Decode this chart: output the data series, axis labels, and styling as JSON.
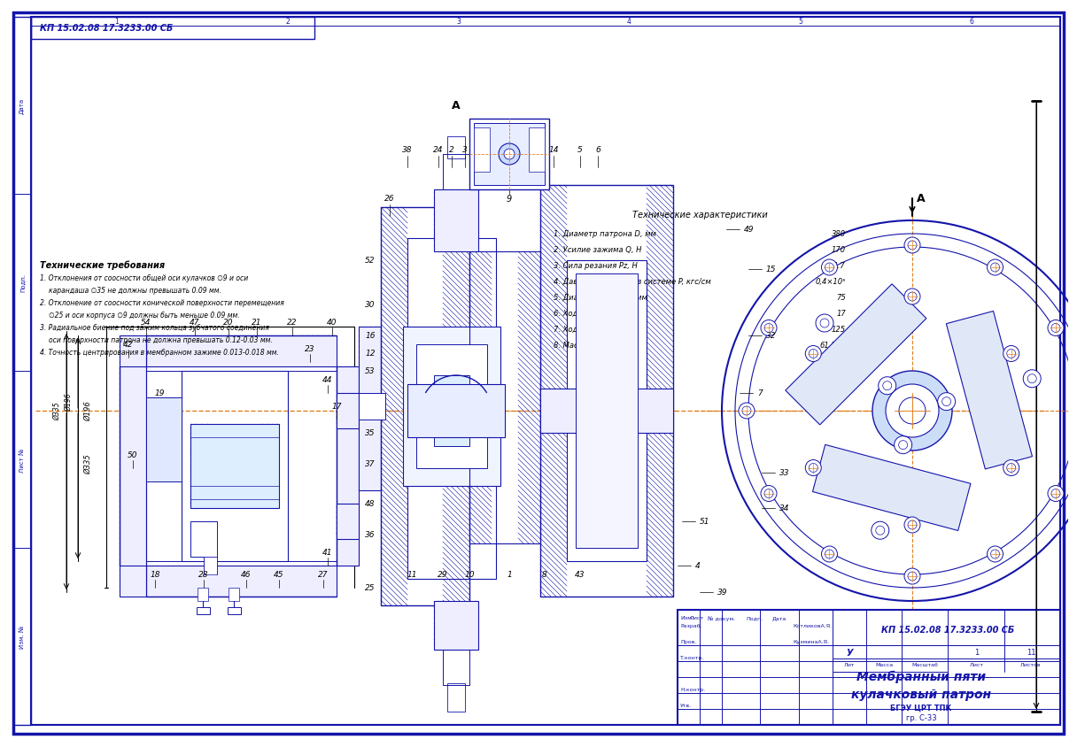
{
  "bg": "#FFFFFF",
  "blue": "#1414AA",
  "orange": "#E08020",
  "black": "#000000",
  "gray": "#888888",
  "title": "КП 15.02.08 17.3233.00 СБ",
  "name1": "Мембранный пяти",
  "name2": "кулачковый патрон",
  "institution": "БГЭУ ЦРТ ТПК",
  "sheet_ref": "гр. С-33",
  "tc_title": "Технические характеристики",
  "tc_items": [
    [
      "1. Диаметр патрона D, мм",
      "380"
    ],
    [
      "2. Усилие зажима Q, Н",
      "170"
    ],
    [
      "3. Сила резания Pz, Н",
      "44.7"
    ],
    [
      "4. Давление воздуха в системе P, кгс/см",
      "0,4×10⁵"
    ],
    [
      "5. Диаметр штока d, мм",
      "75"
    ],
    [
      "6. Ход поршня S, мм",
      "17"
    ],
    [
      "7. Ход губок Lz, мм",
      "125"
    ],
    [
      "8. Масса m, кг",
      "61.573"
    ]
  ],
  "tn_title": "Технические требования",
  "tn_items": [
    "1. Отклонения от соосности общей оси кулачков ∅9 и оси",
    "карандаша ∅35 не должны превышать 0.09 мм.",
    "2. Отклонение от соосности конической поверхности перемещения",
    "∅25 и оси корпуса ∅9 должны быть меньше 0.09 мм.",
    "3. Радиальное биение под зажим кольца зубчатого соединения",
    "оси поверхности патрона не должна превышать 0.12-0.03 мм.",
    "4. Точность центрирования в мембранном зажиме 0.013-0.018 мм."
  ]
}
